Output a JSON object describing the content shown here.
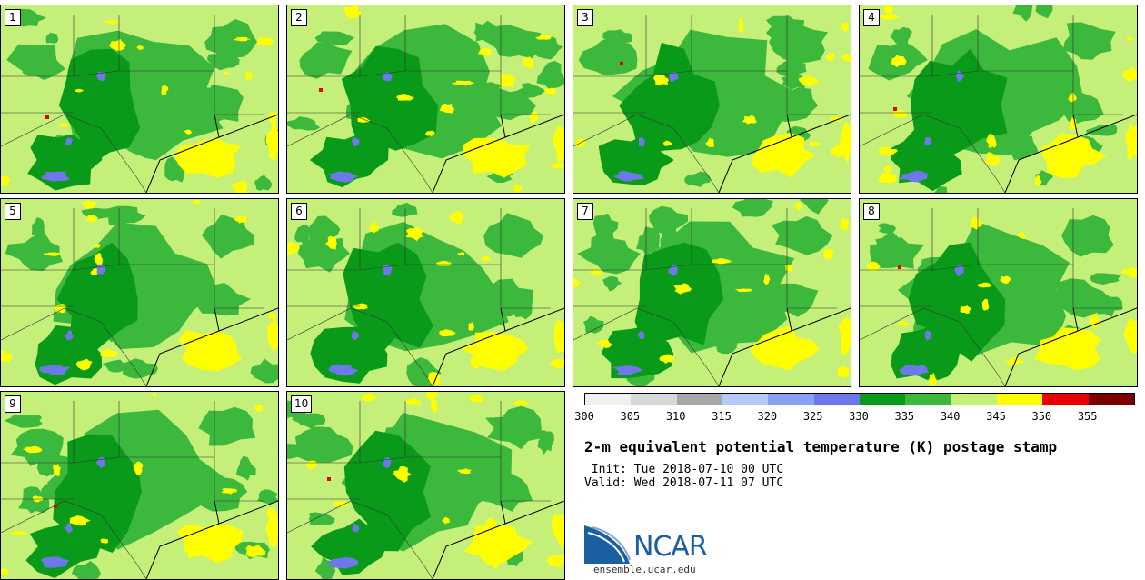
{
  "panels": [
    "1",
    "2",
    "3",
    "4",
    "5",
    "6",
    "7",
    "8",
    "9",
    "10"
  ],
  "colorbar": {
    "colors": [
      "#efefef",
      "#d8d8d8",
      "#a8a8a8",
      "#b7c9f7",
      "#8aa0f0",
      "#6f78ea",
      "#0a9a1a",
      "#3cb83c",
      "#c4f07a",
      "#ffff00",
      "#e60000",
      "#7a0000"
    ],
    "ticks": [
      "300",
      "305",
      "310",
      "315",
      "320",
      "325",
      "330",
      "335",
      "340",
      "345",
      "350",
      "355"
    ]
  },
  "title": "2-m equivalent potential temperature (K) postage stamp",
  "init": " Init: Tue 2018-07-10 00 UTC",
  "valid": "Valid: Wed 2018-07-11 07 UTC",
  "logo_text": "NCAR",
  "site": "ensemble.ucar.edu",
  "colors": {
    "light_green": "#c4f07a",
    "mid_green": "#3cb83c",
    "dark_green": "#0a9a1a",
    "blue": "#6f78ea",
    "yellow": "#ffff00",
    "red": "#e60000"
  }
}
